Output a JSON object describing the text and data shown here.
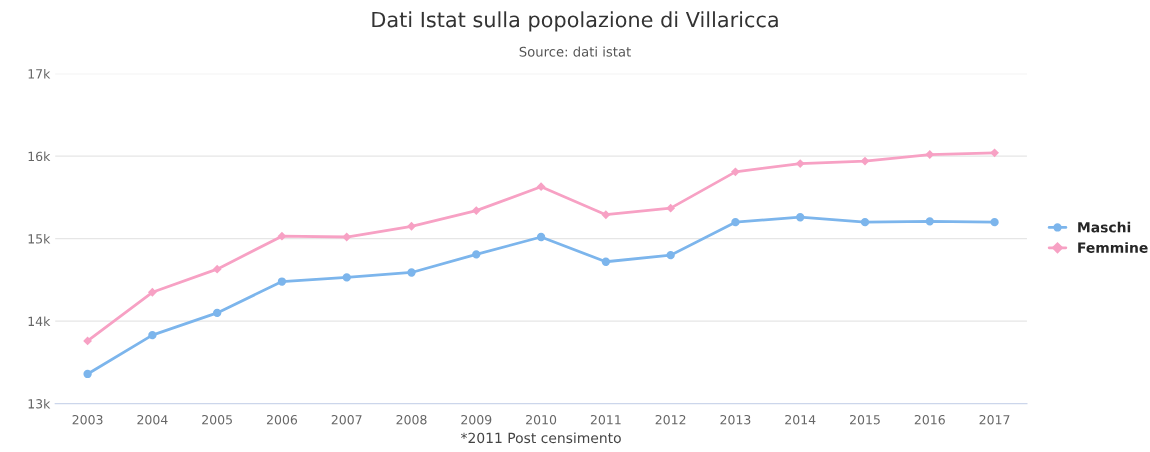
{
  "chart_data": {
    "type": "line",
    "title": "Dati Istat sulla popolazione di Villaricca",
    "subtitle": "Source: dati istat",
    "xlabel": "*2011 Post censimento",
    "categories": [
      "2003",
      "2004",
      "2005",
      "2006",
      "2007",
      "2008",
      "2009",
      "2010",
      "2011",
      "2012",
      "2013",
      "2014",
      "2015",
      "2016",
      "2017"
    ],
    "series": [
      {
        "name": "Maschi",
        "color": "#7cb5ec",
        "marker": "circle",
        "values": [
          13360,
          13830,
          14100,
          14480,
          14530,
          14590,
          14810,
          15020,
          14720,
          14800,
          15200,
          15260,
          15200,
          15210,
          15200
        ]
      },
      {
        "name": "Femmine",
        "color": "#f7a1c4",
        "marker": "diamond",
        "values": [
          13760,
          14350,
          14630,
          15030,
          15020,
          15150,
          15340,
          15630,
          15290,
          15370,
          15810,
          15910,
          15940,
          16020,
          16040
        ]
      }
    ],
    "ylim": [
      13000,
      17000
    ],
    "yticks": [
      {
        "value": 13000,
        "label": "13k"
      },
      {
        "value": 14000,
        "label": "14k"
      },
      {
        "value": 15000,
        "label": "15k"
      },
      {
        "value": 16000,
        "label": "16k"
      },
      {
        "value": 17000,
        "label": "17k"
      }
    ],
    "grid": "y",
    "legend": "right"
  }
}
